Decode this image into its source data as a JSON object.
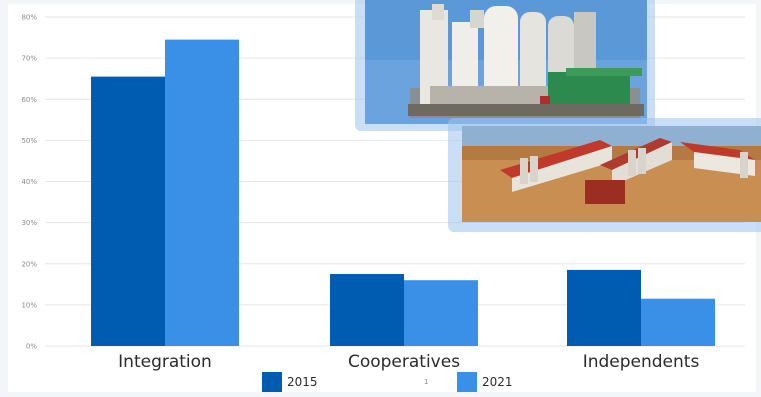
{
  "chart_data": {
    "type": "bar",
    "categories": [
      "Integration",
      "Cooperatives",
      "Independents"
    ],
    "series": [
      {
        "name": "2015",
        "values": [
          65.5,
          17.5,
          18.5
        ],
        "color": "#005cb0"
      },
      {
        "name": "2021",
        "values": [
          74.5,
          16.0,
          11.5
        ],
        "color": "#3a8fe6"
      }
    ],
    "ylim": [
      0,
      80
    ],
    "yticks": [
      "0%",
      "10%",
      "20%",
      "30%",
      "40%",
      "50%",
      "60%",
      "70%",
      "80%"
    ],
    "grid": true,
    "legend": "bottom",
    "legend_extra_text": "1",
    "photos": [
      "grain-silo-photo",
      "poultry-farm-photo"
    ]
  }
}
